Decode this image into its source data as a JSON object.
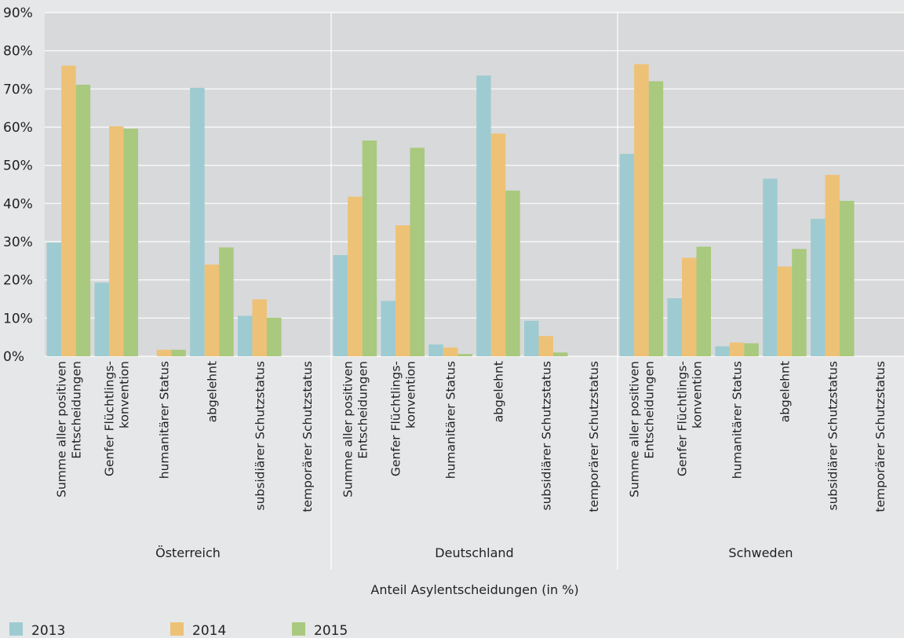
{
  "chart_data": {
    "type": "bar",
    "title": "",
    "xlabel": "Anteil Asylentscheidungen (in %)",
    "ylabel": "",
    "ylim": [
      0,
      90
    ],
    "yticks": [
      0,
      10,
      20,
      30,
      40,
      50,
      60,
      70,
      80,
      90
    ],
    "ytick_labels": [
      "0%",
      "10%",
      "20%",
      "30%",
      "40%",
      "50%",
      "60%",
      "70%",
      "80%",
      "90%"
    ],
    "grid": true,
    "legend_position": "bottom-left",
    "categories": [
      [
        "Summe aller positiven",
        "Entscheidungen"
      ],
      [
        "Genfer Flüchtlings-",
        "konvention"
      ],
      [
        "humanitärer Status"
      ],
      [
        "abgelehnt"
      ],
      [
        "subsidiärer Schutzstatus"
      ],
      [
        "temporärer Schutzstatus"
      ]
    ],
    "groups": [
      {
        "name": "Österreich",
        "series": [
          {
            "name": "2013",
            "values": [
              29.8,
              19.3,
              0,
              70.3,
              10.6,
              0
            ]
          },
          {
            "name": "2014",
            "values": [
              76.1,
              60.2,
              1.7,
              24.0,
              14.9,
              0
            ]
          },
          {
            "name": "2015",
            "values": [
              71.1,
              59.6,
              1.7,
              28.5,
              10.1,
              0
            ]
          }
        ]
      },
      {
        "name": "Deutschland",
        "series": [
          {
            "name": "2013",
            "values": [
              26.5,
              14.5,
              3.1,
              73.5,
              9.3,
              0
            ]
          },
          {
            "name": "2014",
            "values": [
              41.8,
              34.3,
              2.3,
              58.3,
              5.3,
              0
            ]
          },
          {
            "name": "2015",
            "values": [
              56.5,
              54.6,
              0.6,
              43.4,
              1.0,
              0
            ]
          }
        ]
      },
      {
        "name": "Schweden",
        "series": [
          {
            "name": "2013",
            "values": [
              53.0,
              15.2,
              2.6,
              46.5,
              36.0,
              0
            ]
          },
          {
            "name": "2014",
            "values": [
              76.5,
              25.8,
              3.6,
              23.5,
              47.5,
              0
            ]
          },
          {
            "name": "2015",
            "values": [
              72.0,
              28.7,
              3.4,
              28.1,
              40.7,
              0
            ]
          }
        ]
      }
    ],
    "colors": {
      "2013": "#9ecbd1",
      "2014": "#edc276",
      "2015": "#a9c97e",
      "plot_background": "#d8d9db",
      "grid": "#ffffff",
      "page_background": "#e6e7e8"
    }
  }
}
